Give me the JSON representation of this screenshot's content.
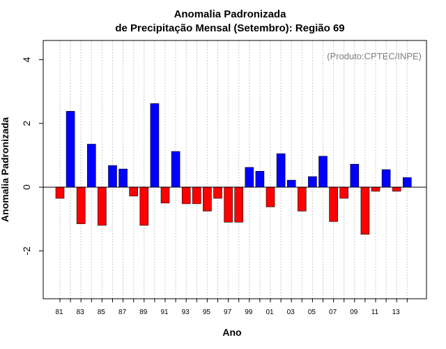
{
  "chart_data": {
    "type": "bar",
    "title_line1": "Anomalia Padronizada",
    "title_line2": "de Precipitação Mensal (Setembro): Região 69",
    "xlabel": "Ano",
    "ylabel": "Anomalia Padronizada",
    "source_note": "(Produto:CPTEC/INPE)",
    "ylim": [
      -3.5,
      4.6
    ],
    "yticks": [
      -2,
      0,
      2,
      4
    ],
    "grid": "vertical dotted",
    "positive_color": "#0000ff",
    "negative_color": "#ff0000",
    "categories": [
      "81",
      "82",
      "83",
      "84",
      "85",
      "86",
      "87",
      "88",
      "89",
      "90",
      "91",
      "92",
      "93",
      "94",
      "95",
      "96",
      "97",
      "98",
      "99",
      "00",
      "01",
      "02",
      "03",
      "04",
      "05",
      "06",
      "07",
      "08",
      "09",
      "10",
      "11",
      "12",
      "13",
      "14"
    ],
    "xtick_labels": [
      "81",
      "83",
      "85",
      "87",
      "89",
      "91",
      "93",
      "95",
      "97",
      "99",
      "01",
      "03",
      "05",
      "07",
      "09",
      "11",
      "13"
    ],
    "values": [
      -0.35,
      2.38,
      -1.15,
      1.35,
      -1.2,
      0.68,
      0.57,
      -0.28,
      -1.2,
      2.62,
      -0.5,
      1.12,
      -0.52,
      -0.52,
      -0.75,
      -0.35,
      -1.1,
      -1.1,
      0.62,
      0.5,
      -0.62,
      1.05,
      0.22,
      -0.75,
      0.33,
      0.97,
      -1.08,
      -0.35,
      0.72,
      -1.48,
      -0.13,
      0.55,
      -0.13,
      0.3
    ]
  }
}
